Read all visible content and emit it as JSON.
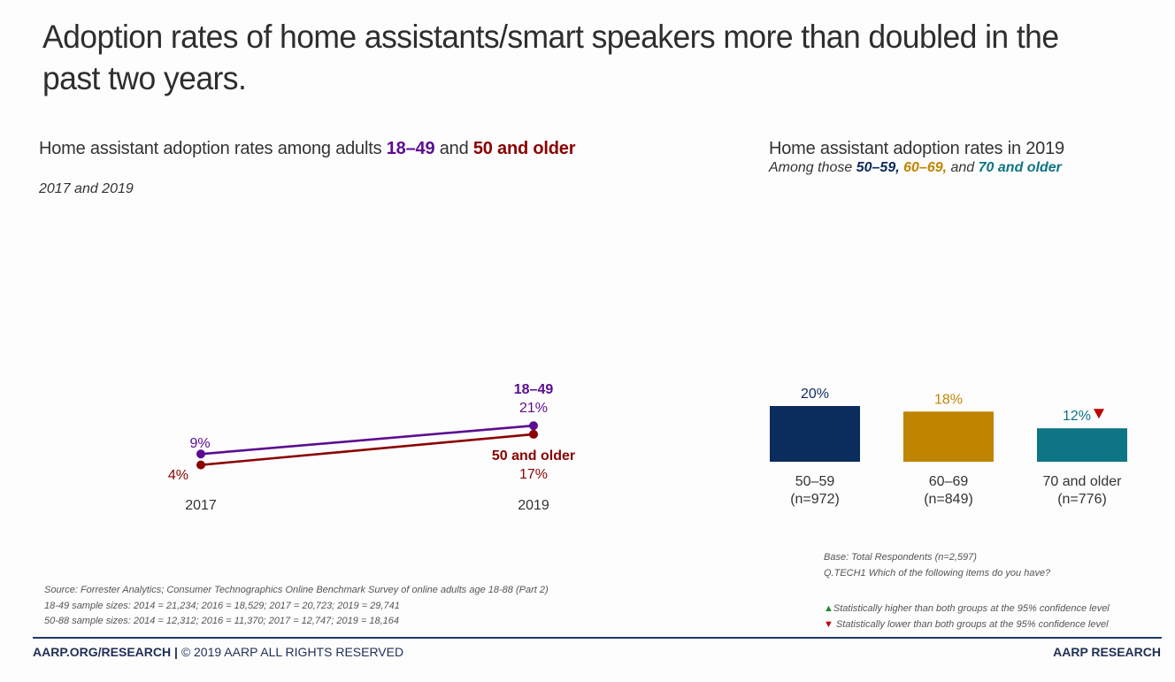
{
  "title": "Adoption rates of home assistants/smart speakers more than doubled in the past two years.",
  "left_panel": {
    "title_prefix": "Home assistant adoption rates among adults ",
    "group1": "18–49",
    "title_mid": " and ",
    "group2": "50 and older",
    "subtitle": "2017 and 2019"
  },
  "right_panel": {
    "title": "Home assistant adoption rates in 2019",
    "sub_prefix": "Among those ",
    "g1": "50–59,",
    "g2": "60–69,",
    "sub_mid": " and ",
    "g3": "70 and older"
  },
  "chart_data": [
    {
      "type": "line",
      "title": "Home assistant adoption rates among adults 18–49 and 50 and older",
      "subtitle": "2017 and 2019",
      "x": [
        "2017",
        "2019"
      ],
      "series": [
        {
          "name": "18–49",
          "values": [
            9,
            21
          ],
          "labels": [
            "9%",
            "21%"
          ],
          "color": "#5b0d91"
        },
        {
          "name": "50 and older",
          "values": [
            4,
            17
          ],
          "labels": [
            "4%",
            "17%"
          ],
          "color": "#8b0000"
        }
      ],
      "xlabel": "",
      "ylabel": "",
      "grid": false,
      "legend": "inline-labels"
    },
    {
      "type": "bar",
      "title": "Home assistant adoption rates in 2019",
      "subtitle": "Among those 50–59, 60–69, and 70 and older",
      "categories": [
        "50–59",
        "60–69",
        "70 and older"
      ],
      "sample_sizes": [
        "(n=972)",
        "(n=849)",
        "(n=776)"
      ],
      "values": [
        20,
        18,
        12
      ],
      "labels": [
        "20%",
        "18%",
        "12%"
      ],
      "colors": [
        "#0b2d5e",
        "#c08500",
        "#0d7583"
      ],
      "significance": [
        null,
        null,
        "lower"
      ],
      "xlabel": "",
      "ylabel": "",
      "grid": false
    }
  ],
  "notes": {
    "source": "Source: Forrester Analytics; Consumer Technographics Online Benchmark Survey of online adults age 18-88 (Part 2)",
    "sample_18_49": "18-49 sample sizes: 2014 = 21,234; 2016 = 18,529; 2017 = 20,723; 2019 = 29,741",
    "sample_50_88": "50-88 sample sizes: 2014 = 12,312; 2016 = 11,370; 2017 = 12,747; 2019 = 18,164",
    "base": "Base: Total Respondents (n=2,597)",
    "question": "Q.TECH1 Which of the following items do you have?",
    "legend_higher": "Statistically higher than both groups at the 95% confidence level",
    "legend_lower": " Statistically lower than both groups at the 95% confidence level",
    "up_glyph": "▲",
    "down_glyph": "▼"
  },
  "footer": {
    "site": "AARP.ORG/RESEARCH",
    "separator": " | ",
    "copyright": "© 2019 AARP ALL RIGHTS RESERVED",
    "brand": "AARP RESEARCH"
  }
}
